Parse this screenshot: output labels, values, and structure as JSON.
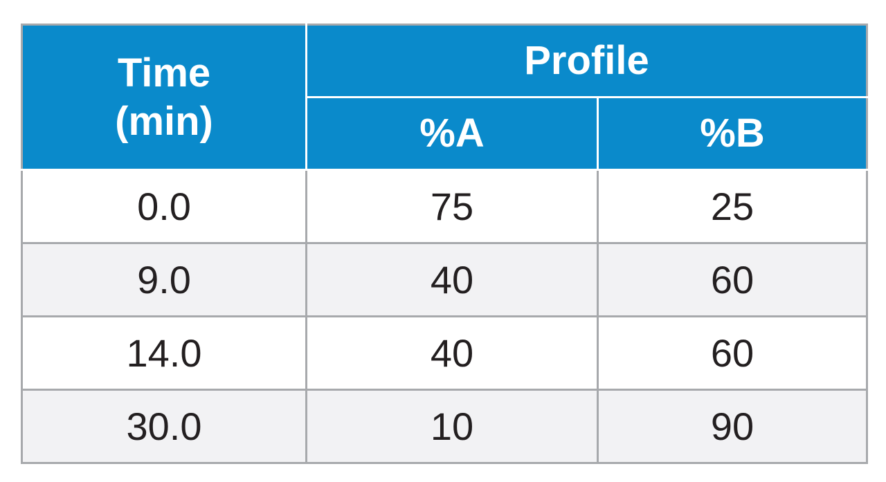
{
  "table": {
    "header": {
      "time_line1": "Time",
      "time_line2": "(min)",
      "group_label": "Profile",
      "col_a": "%A",
      "col_b": "%B"
    },
    "rows": [
      {
        "time": "0.0",
        "a": "75",
        "b": "25"
      },
      {
        "time": "9.0",
        "a": "40",
        "b": "60"
      },
      {
        "time": "14.0",
        "a": "40",
        "b": "60"
      },
      {
        "time": "30.0",
        "a": "10",
        "b": "90"
      }
    ],
    "colors": {
      "header_bg": "#0a8acb",
      "header_text": "#ffffff",
      "border": "#a7a9ac",
      "row_alt_bg": "#f2f2f4",
      "body_text": "#231f20"
    }
  }
}
